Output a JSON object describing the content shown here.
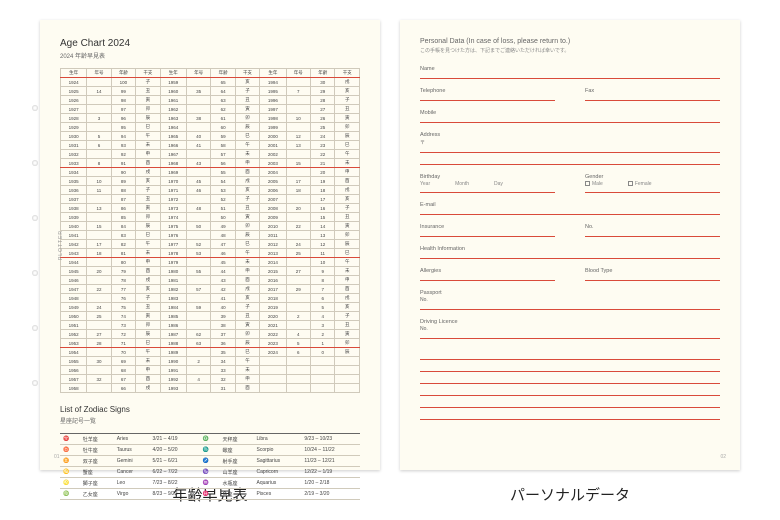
{
  "left": {
    "title": "Age Chart 2024",
    "subtitle": "2024 年齢早見表",
    "headers": [
      "生年",
      "年号",
      "年齢",
      "干支",
      "生年",
      "年号",
      "年齢",
      "干支",
      "生年",
      "年号",
      "年齢",
      "干支"
    ],
    "rows": [
      [
        "1924",
        "",
        "100",
        "子",
        "1959",
        "",
        "65",
        "亥",
        "1994",
        "",
        "30",
        "戌"
      ],
      [
        "1925",
        "14",
        "99",
        "丑",
        "1960",
        "35",
        "64",
        "子",
        "1995",
        "7",
        "29",
        "亥"
      ],
      [
        "1926",
        "",
        "98",
        "寅",
        "1961",
        "",
        "63",
        "丑",
        "1996",
        "",
        "28",
        "子"
      ],
      [
        "1927",
        "",
        "97",
        "卯",
        "1962",
        "",
        "62",
        "寅",
        "1997",
        "",
        "27",
        "丑"
      ],
      [
        "1928",
        "3",
        "96",
        "辰",
        "1963",
        "38",
        "61",
        "卯",
        "1998",
        "10",
        "26",
        "寅"
      ],
      [
        "1929",
        "",
        "95",
        "巳",
        "1964",
        "",
        "60",
        "辰",
        "1999",
        "",
        "25",
        "卯"
      ],
      [
        "1930",
        "5",
        "94",
        "午",
        "1965",
        "40",
        "59",
        "巳",
        "2000",
        "12",
        "24",
        "辰"
      ],
      [
        "1931",
        "6",
        "93",
        "未",
        "1966",
        "41",
        "58",
        "午",
        "2001",
        "13",
        "23",
        "巳"
      ],
      [
        "1932",
        "",
        "92",
        "申",
        "1967",
        "",
        "57",
        "未",
        "2002",
        "",
        "22",
        "午"
      ],
      [
        "1933",
        "8",
        "91",
        "酉",
        "1968",
        "43",
        "56",
        "申",
        "2003",
        "15",
        "21",
        "未"
      ],
      [
        "1934",
        "",
        "90",
        "戌",
        "1969",
        "",
        "55",
        "酉",
        "2004",
        "",
        "20",
        "申"
      ],
      [
        "1935",
        "10",
        "89",
        "亥",
        "1970",
        "45",
        "54",
        "戌",
        "2005",
        "17",
        "19",
        "酉"
      ],
      [
        "1936",
        "11",
        "88",
        "子",
        "1971",
        "46",
        "53",
        "亥",
        "2006",
        "18",
        "18",
        "戌"
      ],
      [
        "1937",
        "",
        "87",
        "丑",
        "1972",
        "",
        "52",
        "子",
        "2007",
        "",
        "17",
        "亥"
      ],
      [
        "1938",
        "13",
        "86",
        "寅",
        "1973",
        "48",
        "51",
        "丑",
        "2008",
        "20",
        "16",
        "子"
      ],
      [
        "1939",
        "",
        "85",
        "卯",
        "1974",
        "",
        "50",
        "寅",
        "2009",
        "",
        "15",
        "丑"
      ],
      [
        "1940",
        "15",
        "84",
        "辰",
        "1975",
        "50",
        "49",
        "卯",
        "2010",
        "22",
        "14",
        "寅"
      ],
      [
        "1941",
        "",
        "83",
        "巳",
        "1976",
        "",
        "48",
        "辰",
        "2011",
        "",
        "13",
        "卯"
      ],
      [
        "1942",
        "17",
        "82",
        "午",
        "1977",
        "52",
        "47",
        "巳",
        "2012",
        "24",
        "12",
        "辰"
      ],
      [
        "1943",
        "18",
        "81",
        "未",
        "1978",
        "53",
        "46",
        "午",
        "2013",
        "25",
        "11",
        "巳"
      ],
      [
        "1944",
        "",
        "80",
        "申",
        "1979",
        "",
        "45",
        "未",
        "2014",
        "",
        "10",
        "午"
      ],
      [
        "1945",
        "20",
        "79",
        "酉",
        "1980",
        "55",
        "44",
        "申",
        "2015",
        "27",
        "9",
        "未"
      ],
      [
        "1946",
        "",
        "78",
        "戌",
        "1981",
        "",
        "43",
        "酉",
        "2016",
        "",
        "8",
        "申"
      ],
      [
        "1947",
        "22",
        "77",
        "亥",
        "1982",
        "57",
        "42",
        "戌",
        "2017",
        "29",
        "7",
        "酉"
      ],
      [
        "1948",
        "",
        "76",
        "子",
        "1983",
        "",
        "41",
        "亥",
        "2018",
        "",
        "6",
        "戌"
      ],
      [
        "1949",
        "24",
        "75",
        "丑",
        "1984",
        "59",
        "40",
        "子",
        "2019",
        "",
        "5",
        "亥"
      ],
      [
        "1950",
        "25",
        "74",
        "寅",
        "1985",
        "",
        "39",
        "丑",
        "2020",
        "2",
        "4",
        "子"
      ],
      [
        "1951",
        "",
        "73",
        "卯",
        "1986",
        "",
        "38",
        "寅",
        "2021",
        "",
        "3",
        "丑"
      ],
      [
        "1952",
        "27",
        "72",
        "辰",
        "1987",
        "62",
        "37",
        "卯",
        "2022",
        "4",
        "2",
        "寅"
      ],
      [
        "1953",
        "28",
        "71",
        "巳",
        "1988",
        "63",
        "36",
        "辰",
        "2023",
        "5",
        "1",
        "卯"
      ],
      [
        "1954",
        "",
        "70",
        "午",
        "1989",
        "",
        "35",
        "巳",
        "2024",
        "6",
        "0",
        "辰"
      ],
      [
        "1955",
        "30",
        "69",
        "未",
        "1990",
        "2",
        "34",
        "午",
        "",
        "",
        "",
        ""
      ],
      [
        "1956",
        "",
        "68",
        "申",
        "1991",
        "",
        "33",
        "未",
        "",
        "",
        "",
        ""
      ],
      [
        "1957",
        "32",
        "67",
        "酉",
        "1992",
        "4",
        "32",
        "申",
        "",
        "",
        "",
        ""
      ],
      [
        "1958",
        "",
        "66",
        "戌",
        "1993",
        "",
        "31",
        "酉",
        "",
        "",
        "",
        ""
      ]
    ],
    "zodiacTitle": "List of Zodiac Signs",
    "zodiacSub": "星座記号一覧",
    "zodiac": [
      [
        "♈",
        "牡羊座",
        "Aries",
        "3/21 – 4/19",
        "♎",
        "天秤座",
        "Libra",
        "9/23 – 10/23"
      ],
      [
        "♉",
        "牡牛座",
        "Taurus",
        "4/20 – 5/20",
        "♏",
        "蠍座",
        "Scorpio",
        "10/24 – 11/22"
      ],
      [
        "♊",
        "双子座",
        "Gemini",
        "5/21 – 6/21",
        "♐",
        "射手座",
        "Sagittarius",
        "11/23 – 12/21"
      ],
      [
        "♋",
        "蟹座",
        "Cancer",
        "6/22 – 7/22",
        "♑",
        "山羊座",
        "Capricorn",
        "12/22 – 1/19"
      ],
      [
        "♌",
        "獅子座",
        "Leo",
        "7/23 – 8/22",
        "♒",
        "水瓶座",
        "Aquarius",
        "1/20 – 2/18"
      ],
      [
        "♍",
        "乙女座",
        "Virgo",
        "8/23 – 9/22",
        "♓",
        "魚座",
        "Pisces",
        "2/19 – 3/20"
      ]
    ],
    "plotter": "PLOTTER",
    "pg": "01"
  },
  "right": {
    "title": "Personal Data (In case of loss, please return to.)",
    "subtitle": "この手帳を見つけた方は、下記までご連絡いただければ幸いです。",
    "fields": {
      "name": "Name",
      "tel": "Telephone",
      "fax": "Fax",
      "mobile": "Mobile",
      "address": "Address",
      "addrmark": "〒",
      "birthday": "Birthday",
      "year": "Year",
      "month": "Month",
      "day": "Day",
      "gender": "Gender",
      "male": "Male",
      "female": "Female",
      "email": "E-mail",
      "insurance": "Insurance",
      "no": "No.",
      "health": "Health Information",
      "allergies": "Allergies",
      "blood": "Blood Type",
      "passport": "Passport",
      "passportno": "No.",
      "licence": "Driving Licence",
      "licenceno": "No."
    },
    "pg": "02"
  },
  "labels": {
    "left": "年齢早見表",
    "right": "パーソナルデータ"
  }
}
